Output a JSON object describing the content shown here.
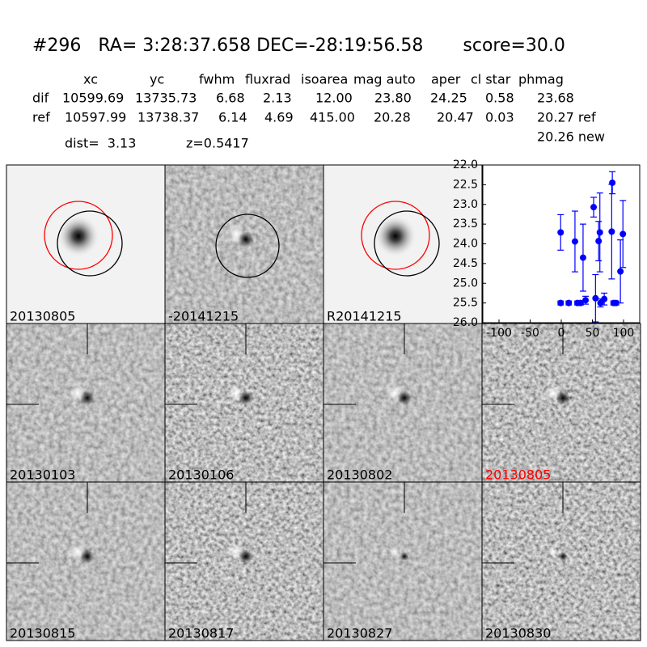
{
  "header": {
    "title": "#296   RA= 3:28:37.658 DEC=-28:19:56.58       score=30.0"
  },
  "table": {
    "columns": [
      "xc",
      "yc",
      "fwhm",
      "fluxrad",
      "isoarea",
      "mag auto",
      "aper",
      "cl star",
      "phmag"
    ],
    "rows": [
      [
        "dif",
        "10599.69",
        "13735.73",
        "6.68",
        "2.13",
        "12.00",
        "23.80",
        "24.25",
        "0.58",
        "23.68"
      ],
      [
        "ref",
        "10597.99",
        "13738.37",
        "6.14",
        "4.69",
        "415.00",
        "20.28",
        "20.47",
        "0.03",
        "20.27 ref"
      ]
    ],
    "note": "20.26 new"
  },
  "dist": "dist=  3.13",
  "z": "z=0.5417",
  "panels": [
    "20130805",
    "-20141215",
    "R20141215"
  ],
  "stamps": [
    "20130103",
    "20130106",
    "20130802",
    "20130805",
    "20130815",
    "20130817",
    "20130827",
    "20130830"
  ],
  "chart_data": {
    "type": "scatter",
    "color": "#0000ff",
    "x": [
      -1,
      -1,
      12,
      22,
      26,
      31,
      35,
      39,
      52,
      55,
      60,
      62,
      63,
      69,
      81,
      82,
      84,
      88,
      95,
      99
    ],
    "values": [
      23.71,
      25.5,
      25.5,
      23.94,
      25.5,
      25.5,
      24.35,
      25.43,
      23.07,
      25.38,
      23.93,
      23.71,
      25.5,
      25.4,
      23.69,
      22.45,
      25.5,
      25.5,
      24.7,
      23.75
    ],
    "errors": [
      0.45,
      0.05,
      0.05,
      0.77,
      0.05,
      0.05,
      0.85,
      0.1,
      0.25,
      0.6,
      0.5,
      1.0,
      0.1,
      0.15,
      1.2,
      0.28,
      0.05,
      0.05,
      0.8,
      0.85
    ],
    "xlim": [
      -126,
      126
    ],
    "xticks": [
      -100,
      -50,
      0,
      50,
      100
    ],
    "ylim": [
      26.0,
      22.0
    ],
    "yticks": [
      {
        "value": 22.0,
        "label": "22.0"
      },
      {
        "value": 22.5,
        "label": "22.5"
      },
      {
        "value": 23.0,
        "label": "23.0"
      },
      {
        "value": 23.5,
        "label": "23.5"
      },
      {
        "value": 24.0,
        "label": "24.0"
      },
      {
        "value": 24.5,
        "label": "24.5"
      },
      {
        "value": 25.0,
        "label": "25.0"
      },
      {
        "value": 25.5,
        "label": "25.5"
      },
      {
        "value": 26.0,
        "label": "26.0"
      }
    ]
  }
}
